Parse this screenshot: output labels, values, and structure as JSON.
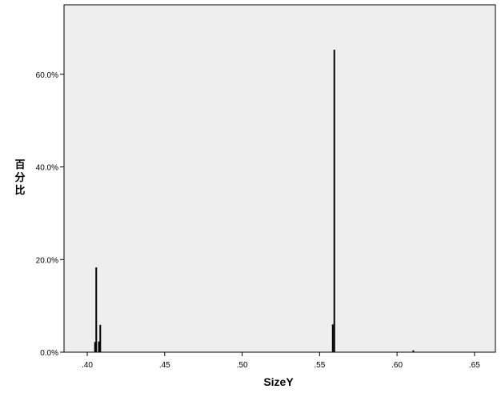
{
  "chart_data": {
    "type": "bar",
    "xlabel": "SizeY",
    "ylabel": "百分比",
    "xlim": [
      0.385,
      0.6635
    ],
    "ylim": [
      0,
      75
    ],
    "x_ticks": [
      0.4,
      0.45,
      0.5,
      0.55,
      0.6,
      0.65
    ],
    "x_tick_labels": [
      ".40",
      ".45",
      ".50",
      ".55",
      ".60",
      ".65"
    ],
    "y_ticks": [
      0,
      20,
      40,
      60
    ],
    "y_tick_labels": [
      "0.0%",
      "20.0%",
      "40.0%",
      "60.0%"
    ],
    "grid": false,
    "legend": "none",
    "plot_background": "#eeeeee",
    "bar_color": "#000000",
    "bars": [
      {
        "x": 0.405,
        "value": 2.2
      },
      {
        "x": 0.4058,
        "value": 18.3
      },
      {
        "x": 0.4075,
        "value": 2.3
      },
      {
        "x": 0.4084,
        "value": 5.9
      },
      {
        "x": 0.5585,
        "value": 6.0
      },
      {
        "x": 0.5595,
        "value": 65.3
      },
      {
        "x": 0.6105,
        "value": 0.4
      }
    ]
  }
}
